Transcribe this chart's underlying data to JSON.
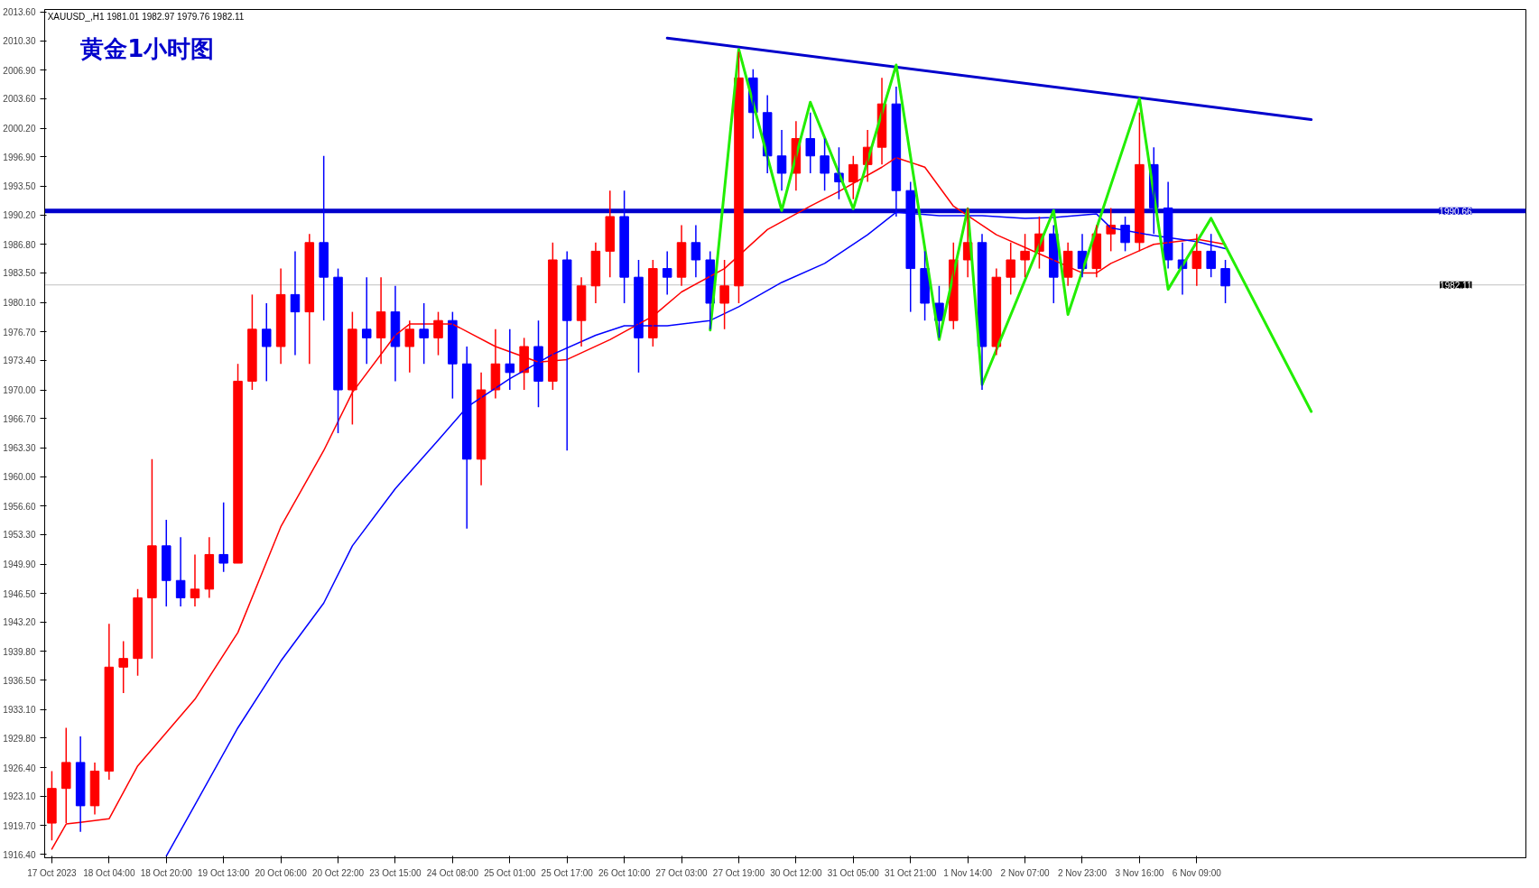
{
  "chart_data": {
    "type": "candlestick",
    "title": "黄金1小时图",
    "annotations": [
      "XAUUSD_,H1  1981.01 1982.97 1979.76 1982.11"
    ],
    "categories": [
      "17 Oct 2023",
      null,
      null,
      null,
      "18 Oct 04:00",
      null,
      null,
      null,
      "18 Oct 20:00",
      null,
      null,
      null,
      "19 Oct 13:00",
      null,
      null,
      null,
      "20 Oct 06:00",
      null,
      null,
      null,
      "20 Oct 22:00",
      null,
      null,
      null,
      "23 Oct 15:00",
      null,
      null,
      null,
      "24 Oct 08:00",
      null,
      null,
      null,
      "25 Oct 01:00",
      null,
      null,
      null,
      "25 Oct 17:00",
      null,
      null,
      null,
      "26 Oct 10:00",
      null,
      null,
      null,
      "27 Oct 03:00",
      null,
      null,
      null,
      "27 Oct 19:00",
      null,
      null,
      null,
      "30 Oct 12:00",
      null,
      null,
      null,
      "31 Oct 05:00",
      null,
      null,
      null,
      "31 Oct 21:00",
      null,
      null,
      null,
      "1 Nov 14:00",
      null,
      null,
      null,
      "2 Nov 07:00",
      null,
      null,
      null,
      "2 Nov 23:00",
      null,
      null,
      null,
      "3 Nov 16:00",
      null,
      null,
      null,
      "6 Nov 09:00",
      null,
      null,
      null,
      null,
      null,
      null,
      null,
      null
    ],
    "ohlc": [
      [
        1920,
        1926,
        1918,
        1924
      ],
      [
        1924,
        1931,
        1920,
        1927
      ],
      [
        1927,
        1930,
        1919,
        1922
      ],
      [
        1922,
        1927,
        1921,
        1926
      ],
      [
        1926,
        1943,
        1925,
        1938
      ],
      [
        1938,
        1941,
        1935,
        1939
      ],
      [
        1939,
        1947,
        1937,
        1946
      ],
      [
        1946,
        1962,
        1939,
        1952
      ],
      [
        1952,
        1955,
        1945,
        1948
      ],
      [
        1948,
        1953,
        1945,
        1946
      ],
      [
        1946,
        1951,
        1945,
        1947
      ],
      [
        1947,
        1953,
        1946,
        1951
      ],
      [
        1951,
        1957,
        1949,
        1950
      ],
      [
        1950,
        1973,
        1950,
        1971
      ],
      [
        1971,
        1981,
        1970,
        1977
      ],
      [
        1977,
        1980,
        1971,
        1975
      ],
      [
        1975,
        1984,
        1973,
        1981
      ],
      [
        1981,
        1986,
        1974,
        1979
      ],
      [
        1979,
        1988,
        1973,
        1987
      ],
      [
        1987,
        1997,
        1978,
        1983
      ],
      [
        1983,
        1984,
        1965,
        1970
      ],
      [
        1970,
        1979,
        1966,
        1977
      ],
      [
        1977,
        1983,
        1973,
        1976
      ],
      [
        1976,
        1983,
        1973,
        1979
      ],
      [
        1979,
        1982,
        1971,
        1975
      ],
      [
        1975,
        1978,
        1972,
        1977
      ],
      [
        1977,
        1980,
        1973,
        1976
      ],
      [
        1976,
        1979,
        1974,
        1978
      ],
      [
        1978,
        1979,
        1969,
        1973
      ],
      [
        1973,
        1975,
        1954,
        1962
      ],
      [
        1962,
        1972,
        1959,
        1970
      ],
      [
        1970,
        1977,
        1969,
        1973
      ],
      [
        1973,
        1977,
        1970,
        1972
      ],
      [
        1972,
        1976,
        1970,
        1975
      ],
      [
        1975,
        1978,
        1968,
        1971
      ],
      [
        1971,
        1987,
        1970,
        1985
      ],
      [
        1985,
        1986,
        1963,
        1978
      ],
      [
        1978,
        1983,
        1975,
        1982
      ],
      [
        1982,
        1987,
        1980,
        1986
      ],
      [
        1986,
        1993,
        1983,
        1990
      ],
      [
        1990,
        1993,
        1980,
        1983
      ],
      [
        1983,
        1985,
        1972,
        1976
      ],
      [
        1976,
        1985,
        1975,
        1984
      ],
      [
        1984,
        1986,
        1981,
        1983
      ],
      [
        1983,
        1989,
        1982,
        1987
      ],
      [
        1987,
        1989,
        1983,
        1985
      ],
      [
        1985,
        1986,
        1977,
        1980
      ],
      [
        1980,
        1985,
        1977,
        1982
      ],
      [
        1982,
        2009,
        1980,
        2006
      ],
      [
        2006,
        2007,
        1999,
        2002
      ],
      [
        2002,
        2004,
        1995,
        1997
      ],
      [
        1997,
        2000,
        1993,
        1995
      ],
      [
        1995,
        2001,
        1993,
        1999
      ],
      [
        1999,
        2002,
        1995,
        1997
      ],
      [
        1997,
        1999,
        1993,
        1995
      ],
      [
        1995,
        1998,
        1992,
        1994
      ],
      [
        1994,
        1997,
        1992,
        1996
      ],
      [
        1996,
        2000,
        1994,
        1998
      ],
      [
        1998,
        2006,
        1996,
        2003
      ],
      [
        2003,
        2005,
        1990,
        1993
      ],
      [
        1993,
        1994,
        1979,
        1984
      ],
      [
        1984,
        1986,
        1978,
        1980
      ],
      [
        1980,
        1982,
        1976,
        1978
      ],
      [
        1978,
        1987,
        1977,
        1985
      ],
      [
        1985,
        1991,
        1983,
        1987
      ],
      [
        1987,
        1988,
        1970,
        1975
      ],
      [
        1975,
        1984,
        1974,
        1983
      ],
      [
        1983,
        1987,
        1981,
        1985
      ],
      [
        1985,
        1988,
        1983,
        1986
      ],
      [
        1986,
        1990,
        1984,
        1988
      ],
      [
        1988,
        1989,
        1980,
        1983
      ],
      [
        1983,
        1987,
        1982,
        1986
      ],
      [
        1986,
        1988,
        1983,
        1984
      ],
      [
        1984,
        1989,
        1983,
        1988
      ],
      [
        1988,
        1991,
        1986,
        1989
      ],
      [
        1989,
        1990,
        1986,
        1987
      ],
      [
        1987,
        2002,
        1986,
        1996
      ],
      [
        1996,
        1998,
        1988,
        1991
      ],
      [
        1991,
        1994,
        1984,
        1985
      ],
      [
        1985,
        1987,
        1981,
        1984
      ],
      [
        1984,
        1988,
        1982,
        1986
      ],
      [
        1986,
        1988,
        1983,
        1984
      ],
      [
        1984,
        1985,
        1980,
        1982
      ],
      null,
      null,
      null,
      null,
      null,
      null
    ],
    "colors": [
      "#ff0000",
      "#ff0000",
      "#0000ff",
      "#ff0000",
      "#ff0000",
      "#ff0000",
      "#ff0000",
      "#ff0000",
      "#0000ff",
      "#0000ff",
      "#ff0000",
      "#ff0000",
      "#0000ff",
      "#ff0000",
      "#ff0000",
      "#0000ff",
      "#ff0000",
      "#0000ff",
      "#ff0000",
      "#0000ff",
      "#0000ff",
      "#ff0000",
      "#0000ff",
      "#ff0000",
      "#0000ff",
      "#ff0000",
      "#0000ff",
      "#ff0000",
      "#0000ff",
      "#0000ff",
      "#ff0000",
      "#ff0000",
      "#0000ff",
      "#ff0000",
      "#0000ff",
      "#ff0000",
      "#0000ff",
      "#ff0000",
      "#ff0000",
      "#ff0000",
      "#0000ff",
      "#0000ff",
      "#ff0000",
      "#0000ff",
      "#ff0000",
      "#0000ff",
      "#0000ff",
      "#ff0000",
      "#ff0000",
      "#0000ff",
      "#0000ff",
      "#0000ff",
      "#ff0000",
      "#0000ff",
      "#0000ff",
      "#0000ff",
      "#ff0000",
      "#ff0000",
      "#ff0000",
      "#0000ff",
      "#0000ff",
      "#0000ff",
      "#0000ff",
      "#ff0000",
      "#ff0000",
      "#0000ff",
      "#ff0000",
      "#ff0000",
      "#ff0000",
      "#ff0000",
      "#0000ff",
      "#ff0000",
      "#0000ff",
      "#ff0000",
      "#ff0000",
      "#0000ff",
      "#ff0000",
      "#0000ff",
      "#0000ff",
      "#0000ff",
      "#ff0000",
      "#0000ff",
      "#0000ff",
      null,
      null,
      null,
      null,
      null,
      null
    ],
    "series": [
      {
        "type": "line",
        "color": "#ff0000",
        "values": [
          1917,
          1919.9,
          1920.1,
          null,
          1920.5,
          null,
          1926.6,
          null,
          null,
          null,
          1934.3,
          null,
          null,
          1942.0,
          null,
          null,
          1954.2,
          null,
          null,
          1963.0,
          null,
          1969.7,
          null,
          null,
          1976.3,
          1977.6,
          null,
          null,
          1977.6,
          null,
          null,
          1975.0,
          null,
          null,
          1973.2,
          null,
          1973.5,
          null,
          null,
          1975.8,
          null,
          null,
          1978.5,
          null,
          1981.3,
          null,
          null,
          1984.0,
          null,
          null,
          1988.5,
          null,
          null,
          1991.2,
          null,
          1992.9,
          null,
          null,
          1995.7,
          1996.8,
          null,
          1995.7,
          null,
          1991.2,
          null,
          null,
          1987.9,
          null,
          null,
          1985.7,
          null,
          null,
          1983.5,
          1983.5,
          1984.6,
          null,
          null,
          1986.8,
          null,
          null,
          1987.4,
          null,
          1986.8,
          null,
          null,
          null,
          null,
          null,
          null
        ]
      },
      {
        "type": "line",
        "color": "#0000ff",
        "values": [
          null,
          null,
          null,
          null,
          null,
          null,
          null,
          null,
          1916.2,
          null,
          1922.1,
          null,
          null,
          1931.0,
          null,
          null,
          1938.7,
          null,
          null,
          1945.4,
          null,
          1952.0,
          null,
          null,
          1958.6,
          null,
          null,
          1964.2,
          null,
          1968.0,
          null,
          null,
          1971.3,
          null,
          null,
          1974.1,
          null,
          null,
          1976.3,
          null,
          1977.4,
          null,
          null,
          1977.4,
          null,
          null,
          1978.0,
          null,
          1979.6,
          null,
          null,
          1982.4,
          null,
          null,
          1984.6,
          null,
          null,
          1987.9,
          null,
          1990.5,
          null,
          null,
          1990.1,
          null,
          null,
          1990.1,
          null,
          null,
          1989.8,
          null,
          1989.9,
          null,
          null,
          1990.3,
          1988.7,
          null,
          null,
          1987.8,
          null,
          null,
          1987.1,
          null,
          1986.3,
          null,
          null,
          null,
          null,
          null,
          null
        ]
      },
      {
        "type": "line",
        "color": "#0000cc",
        "values": [
          null,
          null,
          null,
          null,
          null,
          null,
          null,
          null,
          null,
          null,
          null,
          null,
          null,
          null,
          null,
          null,
          null,
          null,
          null,
          null,
          null,
          null,
          null,
          null,
          null,
          null,
          null,
          null,
          null,
          null,
          null,
          null,
          null,
          null,
          null,
          null,
          null,
          null,
          null,
          null,
          null,
          null,
          null,
          2010.6,
          null,
          null,
          null,
          null,
          null,
          null,
          null,
          null,
          null,
          null,
          null,
          null,
          null,
          null,
          null,
          null,
          null,
          null,
          null,
          null,
          null,
          null,
          null,
          null,
          null,
          null,
          null,
          null,
          null,
          null,
          null,
          null,
          null,
          null,
          null,
          null,
          null,
          null,
          null,
          null,
          null,
          null,
          null,
          null,
          2001.2
        ]
      },
      {
        "type": "line",
        "color": "#22ee00",
        "values": [
          null,
          null,
          null,
          null,
          null,
          null,
          null,
          null,
          null,
          null,
          null,
          null,
          null,
          null,
          null,
          null,
          null,
          null,
          null,
          null,
          null,
          null,
          null,
          null,
          null,
          null,
          null,
          null,
          null,
          null,
          null,
          null,
          null,
          null,
          null,
          null,
          null,
          null,
          null,
          null,
          null,
          null,
          null,
          null,
          null,
          null,
          1976.9,
          null,
          2009.3,
          null,
          null,
          1990.7,
          null,
          2003.2,
          null,
          null,
          1990.9,
          null,
          null,
          2007.5,
          null,
          null,
          1975.8,
          null,
          1990.9,
          1970.6,
          null,
          null,
          null,
          null,
          1990.7,
          1978.7,
          null,
          null,
          null,
          null,
          2003.6,
          null,
          1981.6,
          null,
          null,
          1989.8,
          null,
          null,
          null,
          null,
          null,
          null,
          1967.5
        ]
      }
    ],
    "ref_lines": [
      {
        "axis": "y",
        "value": 1990.66,
        "label": "1990.66",
        "color": "#0000cc"
      },
      {
        "axis": "y",
        "value": 1982.11,
        "label": "1982.11",
        "color": "#c0c0c0"
      }
    ],
    "ylim": [
      1916.0,
      2013.9
    ],
    "yticks": [
      {
        "value": 1916.4,
        "label": "1916.40"
      },
      {
        "value": 1919.7,
        "label": "1919.70"
      },
      {
        "value": 1923.1,
        "label": "1923.10"
      },
      {
        "value": 1926.4,
        "label": "1926.40"
      },
      {
        "value": 1929.8,
        "label": "1929.80"
      },
      {
        "value": 1933.1,
        "label": "1933.10"
      },
      {
        "value": 1936.5,
        "label": "1936.50"
      },
      {
        "value": 1939.8,
        "label": "1939.80"
      },
      {
        "value": 1943.2,
        "label": "1943.20"
      },
      {
        "value": 1946.5,
        "label": "1946.50"
      },
      {
        "value": 1949.9,
        "label": "1949.90"
      },
      {
        "value": 1953.3,
        "label": "1953.30"
      },
      {
        "value": 1956.6,
        "label": "1956.60"
      },
      {
        "value": 1960,
        "label": "1960.00"
      },
      {
        "value": 1963.3,
        "label": "1963.30"
      },
      {
        "value": 1966.7,
        "label": "1966.70"
      },
      {
        "value": 1970,
        "label": "1970.00"
      },
      {
        "value": 1973.4,
        "label": "1973.40"
      },
      {
        "value": 1976.7,
        "label": "1976.70"
      },
      {
        "value": 1980.1,
        "label": "1980.10"
      },
      {
        "value": 1983.5,
        "label": "1983.50"
      },
      {
        "value": 1986.8,
        "label": "1986.80"
      },
      {
        "value": 1990.2,
        "label": "1990.20"
      },
      {
        "value": 1993.5,
        "label": "1993.50"
      },
      {
        "value": 1996.9,
        "label": "1996.90"
      },
      {
        "value": 2000.2,
        "label": "2000.20"
      },
      {
        "value": 2003.6,
        "label": "2003.60"
      },
      {
        "value": 2006.9,
        "label": "2006.90"
      },
      {
        "value": 2010.3,
        "label": "2010.30"
      },
      {
        "value": 2013.6,
        "label": "2013.60"
      }
    ],
    "grid": false
  }
}
